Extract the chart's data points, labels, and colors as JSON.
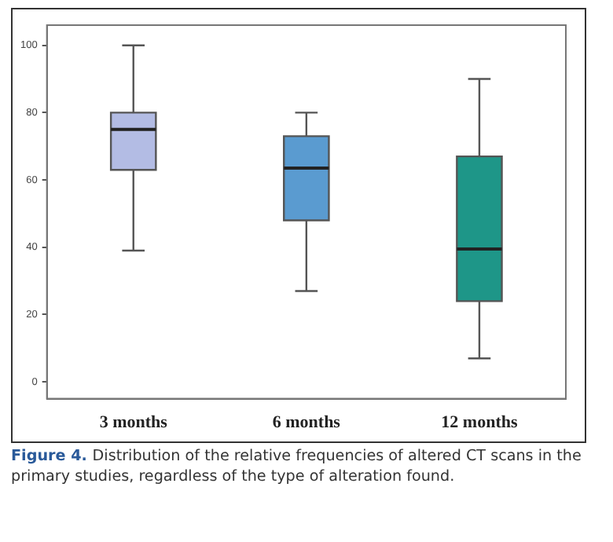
{
  "chart_data": {
    "type": "box",
    "categories": [
      "3 months",
      "6 months",
      "12 months"
    ],
    "colors": [
      "#b3bce4",
      "#5a9bd0",
      "#1e9688"
    ],
    "boxes": [
      {
        "low": 39,
        "q1": 63,
        "median": 75,
        "q3": 80,
        "high": 100
      },
      {
        "low": 27,
        "q1": 48,
        "median": 63.5,
        "q3": 73,
        "high": 80
      },
      {
        "low": 7,
        "q1": 24,
        "median": 39.5,
        "q3": 67,
        "high": 90
      }
    ],
    "ylim": [
      -5,
      106
    ],
    "yticks": [
      0,
      20,
      40,
      60,
      80,
      100
    ],
    "grid": false,
    "legend": false,
    "annotations": [
      "Figure 4.",
      "Distribution of the relative frequencies of altered CT scans in the primary studies, regardless of the type of alteration found."
    ]
  }
}
